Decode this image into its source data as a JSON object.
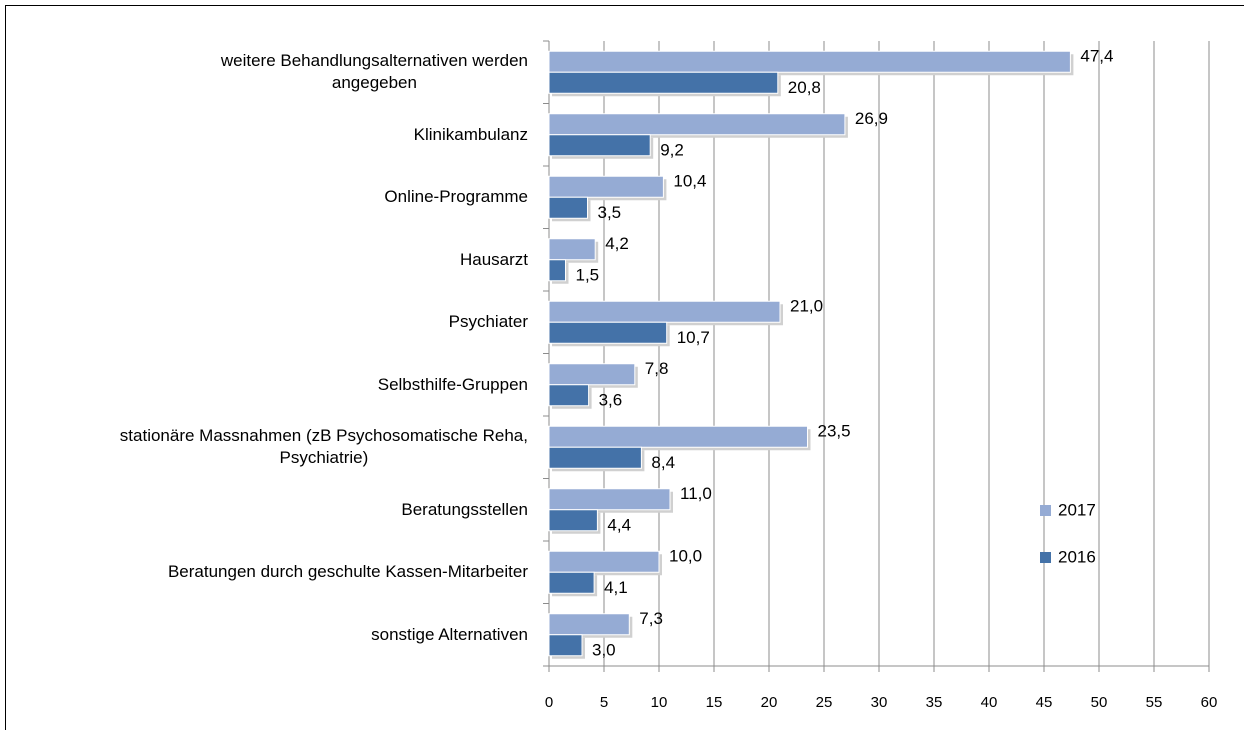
{
  "chart_data": {
    "type": "barh",
    "categories": [
      "weitere Behandlungsalternativen werden\nangegeben",
      "Klinikambulanz",
      "Online-Programme",
      "Hausarzt",
      "Psychiater",
      "Selbsthilfe-Gruppen",
      "stationäre Massnahmen (zB Psychosomatische Reha,\nPsychiatrie)",
      "Beratungsstellen",
      "Beratungen durch geschulte Kassen-Mitarbeiter",
      "sonstige Alternativen"
    ],
    "series": [
      {
        "name": "2017",
        "color": "#95abd4",
        "values": [
          47.4,
          26.9,
          10.4,
          4.2,
          21.0,
          7.8,
          23.5,
          11.0,
          10.0,
          7.3
        ],
        "value_labels": [
          "47,4",
          "26,9",
          "10,4",
          "4,2",
          "21,0",
          "7,8",
          "23,5",
          "11,0",
          "10,0",
          "7,3"
        ]
      },
      {
        "name": "2016",
        "color": "#4472a8",
        "values": [
          20.8,
          9.2,
          3.5,
          1.5,
          10.7,
          3.6,
          8.4,
          4.4,
          4.1,
          3.0
        ],
        "value_labels": [
          "20,8",
          "9,2",
          "3,5",
          "1,5",
          "10,7",
          "3,6",
          "8,4",
          "4,4",
          "4,1",
          "3,0"
        ]
      }
    ],
    "xlim": [
      0,
      60
    ],
    "xticks": [
      0,
      5,
      10,
      15,
      20,
      25,
      30,
      35,
      40,
      45,
      50,
      55,
      60
    ],
    "grid": true,
    "legend": "right"
  }
}
